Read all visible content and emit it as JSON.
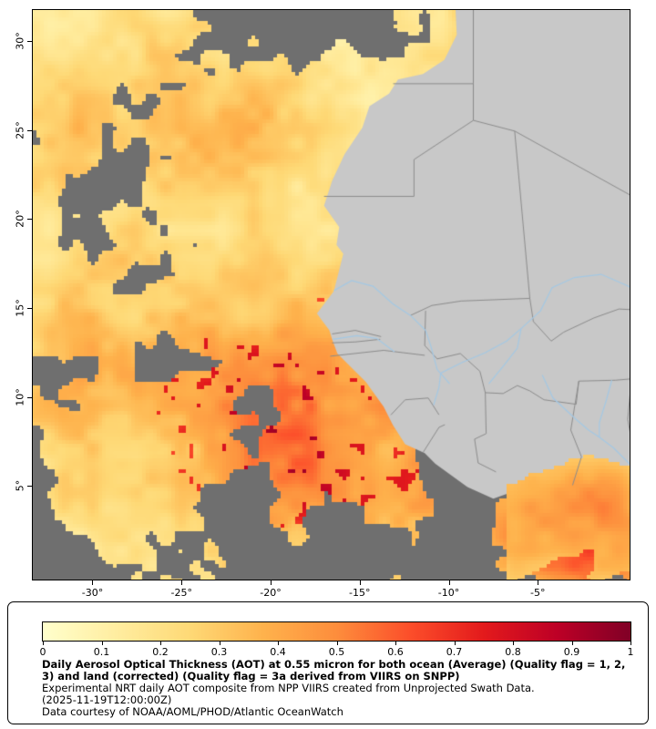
{
  "axes": {
    "lat_ticks": [
      {
        "label": "30°",
        "value": 30
      },
      {
        "label": "25°",
        "value": 25
      },
      {
        "label": "20°",
        "value": 20
      },
      {
        "label": "15°",
        "value": 15
      },
      {
        "label": "10°",
        "value": 10
      },
      {
        "label": "5°",
        "value": 5
      }
    ],
    "lon_ticks": [
      {
        "label": "-30°",
        "value": -30
      },
      {
        "label": "-25°",
        "value": -25
      },
      {
        "label": "-20°",
        "value": -20
      },
      {
        "label": "-15°",
        "value": -15
      },
      {
        "label": "-10°",
        "value": -10
      },
      {
        "label": "-5°",
        "value": -5
      }
    ]
  },
  "legend": {
    "ticks": [
      {
        "label": "0",
        "value": 0
      },
      {
        "label": "0.1",
        "value": 0.1
      },
      {
        "label": "0.2",
        "value": 0.2
      },
      {
        "label": "0.3",
        "value": 0.3
      },
      {
        "label": "0.4",
        "value": 0.4
      },
      {
        "label": "0.5",
        "value": 0.5
      },
      {
        "label": "0.6",
        "value": 0.6
      },
      {
        "label": "0.7",
        "value": 0.7
      },
      {
        "label": "0.8",
        "value": 0.8
      },
      {
        "label": "0.9",
        "value": 0.9
      },
      {
        "label": "1",
        "value": 1
      }
    ],
    "title": "Daily Aerosol Optical Thickness (AOT) at 0.55 micron for both ocean (Average) (Quality flag = 1, 2, 3) and land (corrected) (Quality flag = 3a derived from VIIRS on SNPP)",
    "line2": "Experimental NRT daily AOT composite from NPP VIIRS created from Unprojected Swath Data.",
    "line3": "(2025-11-19T12:00:00Z)",
    "line4": "Data courtesy of NOAA/AOML/PHOD/Atlantic OceanWatch"
  },
  "colors": {
    "background": "#ffffff",
    "missing_data": "#6f6f6f",
    "land": "#c8c8c8",
    "border_lines": "#8c8c8c",
    "rivers": "#a4c8e4",
    "frame": "#000000",
    "colormap": [
      "#ffffcc",
      "#ffeda0",
      "#fed976",
      "#feb24c",
      "#fd8d3c",
      "#fc4e2a",
      "#e31a1c",
      "#bd0026",
      "#800026"
    ]
  },
  "chart_data": {
    "type": "heatmap",
    "title": "Daily Aerosol Optical Thickness (AOT) at 0.55 micron",
    "value_range": [
      0,
      1
    ],
    "colorbar_ticks": [
      0,
      0.1,
      0.2,
      0.3,
      0.4,
      0.5,
      0.6,
      0.7,
      0.8,
      0.9,
      1
    ],
    "x_axis_ticks_deg_lon": [
      -30,
      -25,
      -20,
      -15,
      -10,
      -5
    ],
    "y_axis_ticks_deg_lat": [
      30,
      25,
      20,
      15,
      10,
      5
    ],
    "colormap_hex": [
      "#ffffcc",
      "#ffeda0",
      "#fed976",
      "#feb24c",
      "#fd8d3c",
      "#fc4e2a",
      "#e31a1c",
      "#bd0026",
      "#800026"
    ],
    "legend_position": "bottom",
    "notes_visible_regions": "High AOT (0.2-0.35) field over NE Atlantic north of 15N; orange plume (0.4-0.7) offshore 8-13N near -22 to -15 lon; orange patch near Gulf of Guinea coast; gray = missing data; light gray = land"
  }
}
